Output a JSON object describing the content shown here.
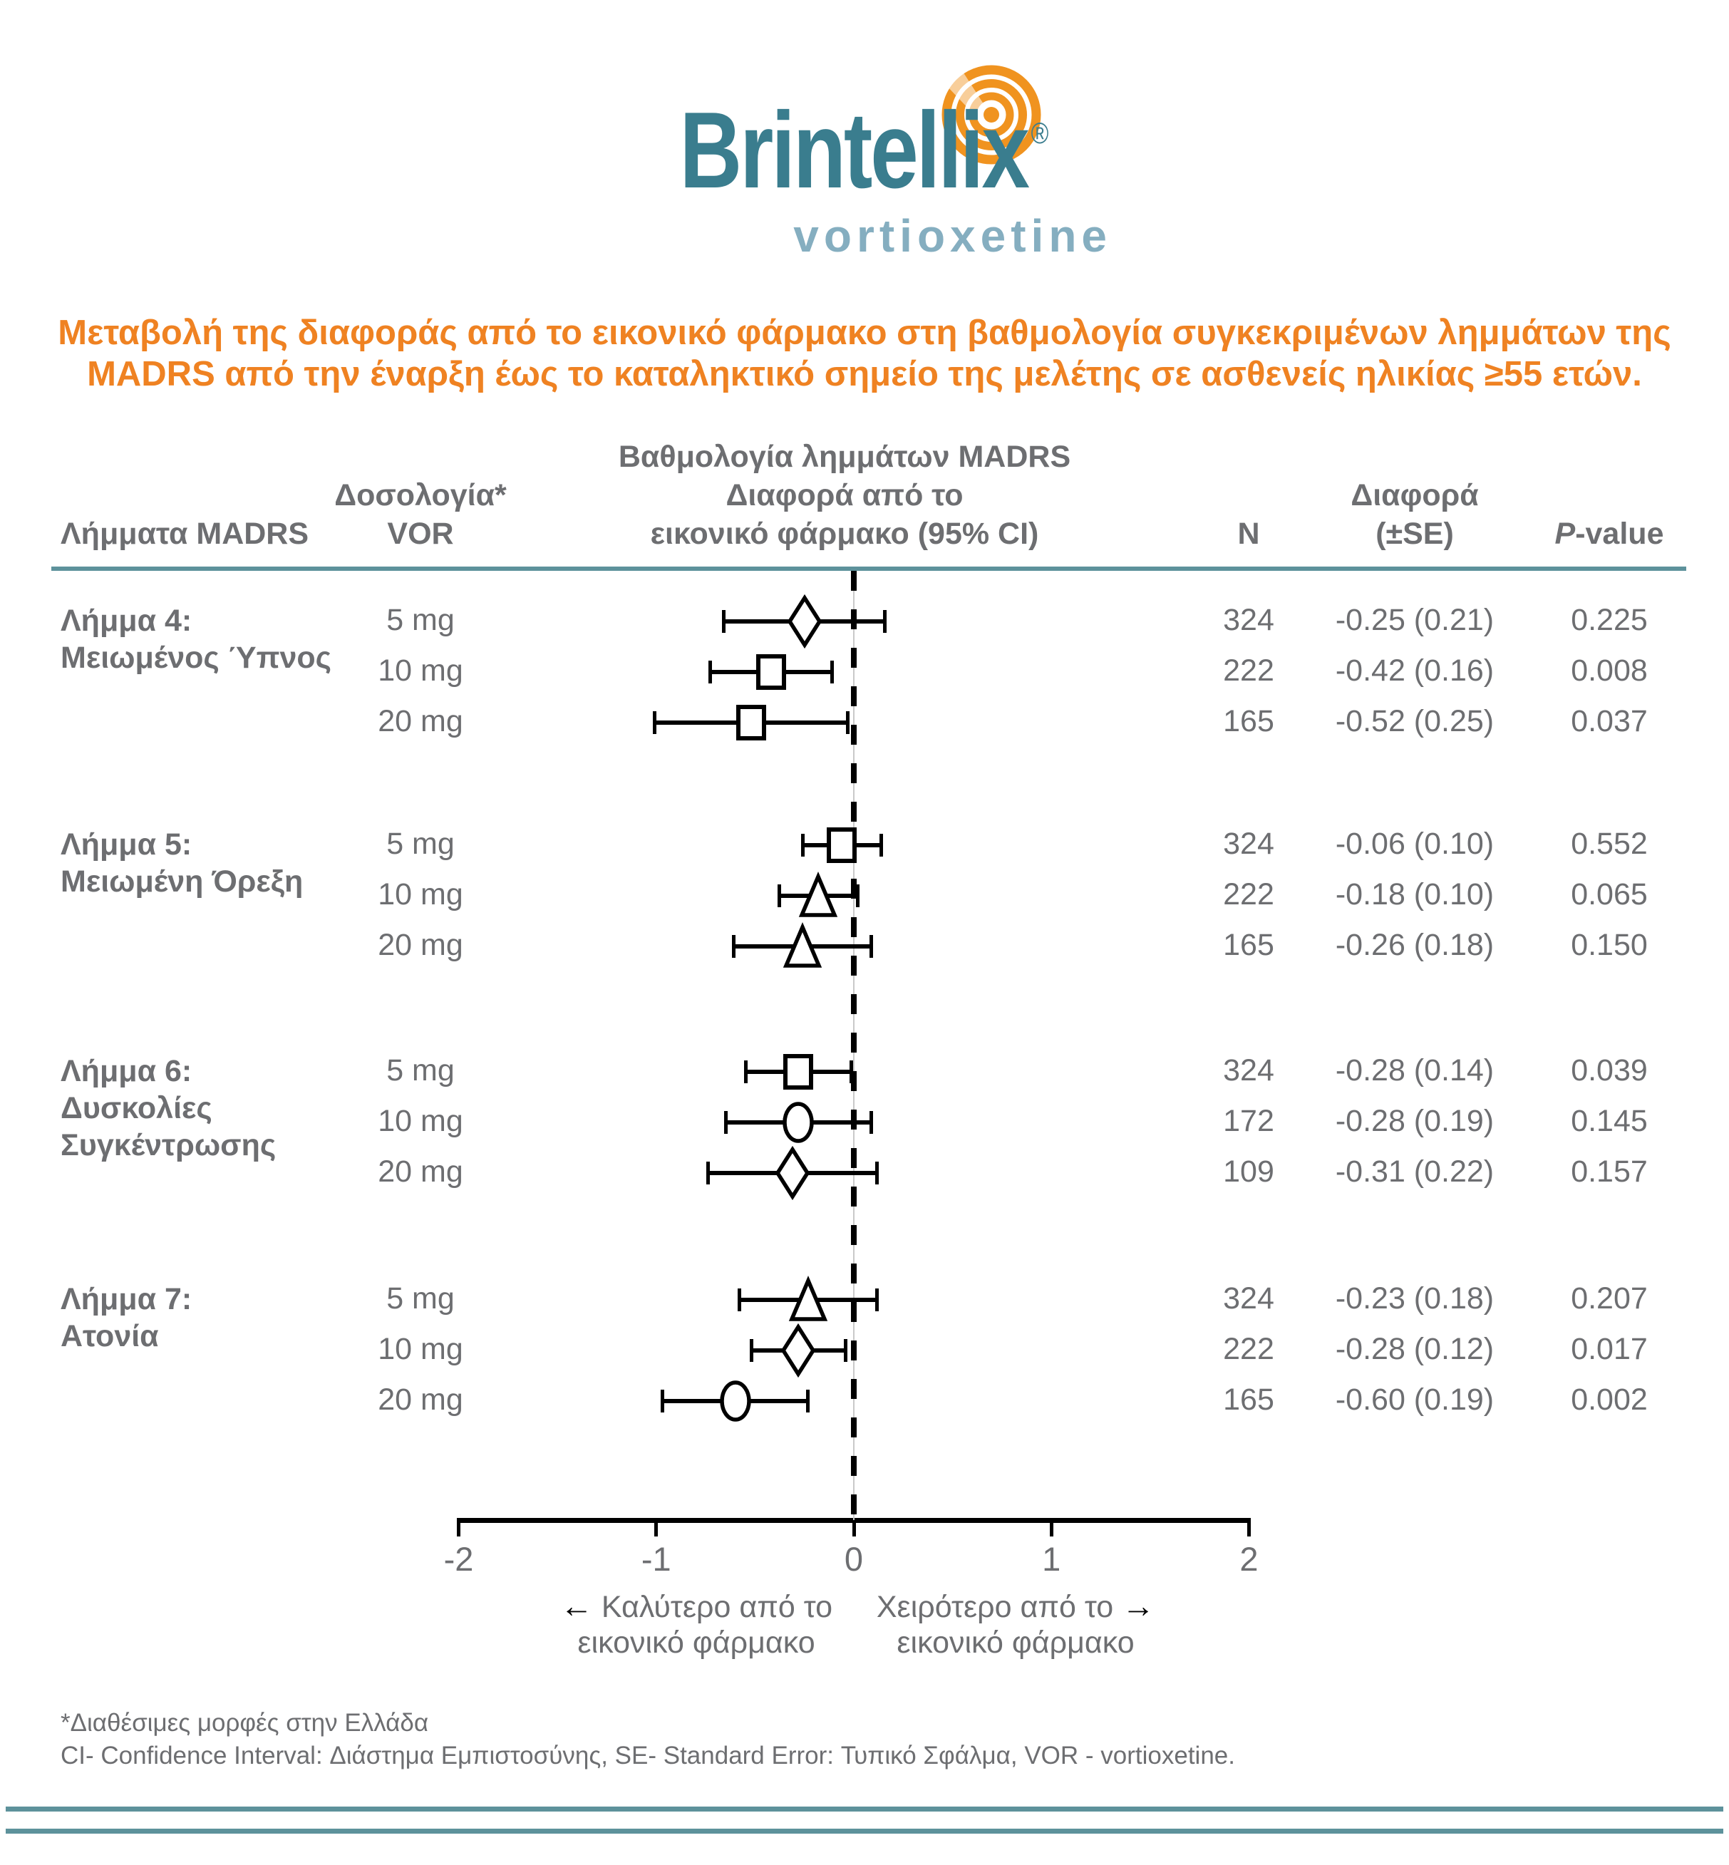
{
  "logo": {
    "brand": "Brintellix",
    "registered": "®",
    "subbrand": "vortioxetine"
  },
  "title": {
    "line1": "Μεταβολή της διαφοράς από το εικονικό φάρμακο στη  βαθμολογία συγκεκριμένων λημμάτων της",
    "line2": "MADRS από την έναρξη έως το καταληκτικό σημείο της μελέτης σε ασθενείς ηλικίας ≥55 ετών."
  },
  "table": {
    "headers": {
      "items": "Λήμματα MADRS",
      "dose": "Δοσολογία*\nVOR",
      "score": "Βαθμολογία λημμάτων MADRS\nΔιαφορά από το\nεικονικό φάρμακο (95% CI)",
      "n": "N",
      "diff": "Διαφορά\n(±SE)",
      "p_italic": "P",
      "p_rest": "-value"
    }
  },
  "chart_data": {
    "type": "forest",
    "x_axis": {
      "min": -2,
      "max": 2,
      "ticks": [
        -2,
        -1,
        0,
        1,
        2
      ],
      "zero_reference_line": 0
    },
    "direction_labels": {
      "left_arrow": "←",
      "left_line1": "Καλύτερο από το",
      "left_line2": "εικονικό φάρμακο",
      "right_line1": "Χειρότερο από το",
      "right_arrow": "→",
      "right_line2": "εικονικό φάρμακο"
    },
    "groups": [
      {
        "label_lines": [
          "Λήμμα 4:",
          "Μειωμένος Ύπνος"
        ],
        "rows": [
          {
            "dose": "5 mg",
            "marker": "diamond",
            "n": "324",
            "diff": -0.25,
            "se": 0.21,
            "ci": [
              -0.66,
              0.16
            ],
            "diff_se": "-0.25 (0.21)",
            "p": "0.225"
          },
          {
            "dose": "10 mg",
            "marker": "square",
            "n": "222",
            "diff": -0.42,
            "se": 0.16,
            "ci": [
              -0.73,
              -0.11
            ],
            "diff_se": "-0.42 (0.16)",
            "p": "0.008"
          },
          {
            "dose": "20 mg",
            "marker": "square",
            "n": "165",
            "diff": -0.52,
            "se": 0.25,
            "ci": [
              -1.01,
              -0.03
            ],
            "diff_se": "-0.52 (0.25)",
            "p": "0.037"
          }
        ]
      },
      {
        "label_lines": [
          "Λήμμα 5:",
          "Μειωμένη Όρεξη"
        ],
        "rows": [
          {
            "dose": "5 mg",
            "marker": "square",
            "n": "324",
            "diff": -0.06,
            "se": 0.1,
            "ci": [
              -0.26,
              0.14
            ],
            "diff_se": "-0.06 (0.10)",
            "p": "0.552"
          },
          {
            "dose": "10 mg",
            "marker": "triangle",
            "n": "222",
            "diff": -0.18,
            "se": 0.1,
            "ci": [
              -0.38,
              0.02
            ],
            "diff_se": "-0.18 (0.10)",
            "p": "0.065"
          },
          {
            "dose": "20 mg",
            "marker": "triangle",
            "n": "165",
            "diff": -0.26,
            "se": 0.18,
            "ci": [
              -0.61,
              0.09
            ],
            "diff_se": "-0.26 (0.18)",
            "p": "0.150"
          }
        ]
      },
      {
        "label_lines": [
          "Λήμμα 6:",
          "Δυσκολίες",
          "Συγκέντρωσης"
        ],
        "rows": [
          {
            "dose": "5 mg",
            "marker": "square",
            "n": "324",
            "diff": -0.28,
            "se": 0.14,
            "ci": [
              -0.55,
              -0.01
            ],
            "diff_se": "-0.28 (0.14)",
            "p": "0.039"
          },
          {
            "dose": "10 mg",
            "marker": "circle",
            "n": "172",
            "diff": -0.28,
            "se": 0.19,
            "ci": [
              -0.65,
              0.09
            ],
            "diff_se": "-0.28 (0.19)",
            "p": "0.145"
          },
          {
            "dose": "20 mg",
            "marker": "diamond",
            "n": "109",
            "diff": -0.31,
            "se": 0.22,
            "ci": [
              -0.74,
              0.12
            ],
            "diff_se": "-0.31 (0.22)",
            "p": "0.157"
          }
        ]
      },
      {
        "label_lines": [
          "Λήμμα 7:",
          "Ατονία"
        ],
        "rows": [
          {
            "dose": "5 mg",
            "marker": "triangle",
            "n": "324",
            "diff": -0.23,
            "se": 0.18,
            "ci": [
              -0.58,
              0.12
            ],
            "diff_se": "-0.23 (0.18)",
            "p": "0.207"
          },
          {
            "dose": "10 mg",
            "marker": "diamond",
            "n": "222",
            "diff": -0.28,
            "se": 0.12,
            "ci": [
              -0.52,
              -0.04
            ],
            "diff_se": "-0.28 (0.12)",
            "p": "0.017"
          },
          {
            "dose": "20 mg",
            "marker": "circle",
            "n": "165",
            "diff": -0.6,
            "se": 0.19,
            "ci": [
              -0.97,
              -0.23
            ],
            "diff_se": "-0.60 (0.19)",
            "p": "0.002"
          }
        ]
      }
    ]
  },
  "footnotes": [
    "*Διαθέσιμες μορφές στην Ελλάδα",
    "CI- Confidence Interval: Διάστημα Εμπιστοσύνης, SE- Standard Error: Τυπικό Σφάλμα, VOR - vortioxetine."
  ],
  "colors": {
    "accent_orange": "#EF8222",
    "brand_teal": "#3A7D8E",
    "brand_teal_light": "#85AEC0",
    "rule_teal": "#5D929B",
    "text_gray": "#6D6E71",
    "marker_black": "#000000",
    "swirl_orange": "#F0931F"
  }
}
